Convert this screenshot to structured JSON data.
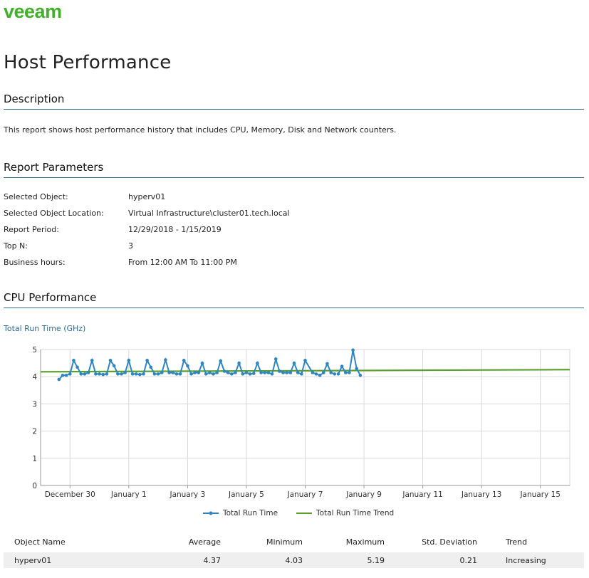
{
  "brand": {
    "logo_text": "veeam",
    "color": "#43b02a"
  },
  "page_title": "Host Performance",
  "sections": {
    "description": "Description",
    "report_parameters": "Report Parameters",
    "cpu_performance": "CPU Performance"
  },
  "description_text": "This report shows host performance history that includes CPU, Memory, Disk and Network counters.",
  "parameters": [
    {
      "label": "Selected Object:",
      "value": "hyperv01"
    },
    {
      "label": "Selected Object Location:",
      "value": "Virtual Infrastructure\\cluster01.tech.local"
    },
    {
      "label": "Report Period:",
      "value": "12/29/2018 - 1/15/2019"
    },
    {
      "label": "Top N:",
      "value": "3"
    },
    {
      "label": "Business hours:",
      "value": "From 12:00 AM To 11:00 PM"
    }
  ],
  "chart_data": {
    "type": "line",
    "title": "Total Run Time (GHz)",
    "xlabel": "",
    "ylabel": "",
    "ylim": [
      0,
      5
    ],
    "yticks": [
      0,
      1,
      2,
      3,
      4,
      5
    ],
    "x_start": "2018-12-29",
    "x_end": "2019-01-16",
    "xtick_labels": [
      "December 30",
      "January 1",
      "January 3",
      "January 5",
      "January 7",
      "January 9",
      "January 11",
      "January 13",
      "January 15"
    ],
    "grid": true,
    "legend_position": "bottom",
    "colors": {
      "series": "#2e86c1",
      "trend": "#5aa02c"
    },
    "series": [
      {
        "name": "Total Run Time",
        "x": [
          "2018-12-29T15:00",
          "2018-12-29T18:00",
          "2018-12-29T21:00",
          "2018-12-30T00:00",
          "2018-12-30T03:00",
          "2018-12-30T06:00",
          "2018-12-30T09:00",
          "2018-12-30T12:00",
          "2018-12-30T15:00",
          "2018-12-30T18:00",
          "2018-12-30T21:00",
          "2018-12-31T00:00",
          "2018-12-31T03:00",
          "2018-12-31T06:00",
          "2018-12-31T09:00",
          "2018-12-31T12:00",
          "2018-12-31T15:00",
          "2018-12-31T18:00",
          "2018-12-31T21:00",
          "2019-01-01T00:00",
          "2019-01-01T03:00",
          "2019-01-01T06:00",
          "2019-01-01T09:00",
          "2019-01-01T12:00",
          "2019-01-01T15:00",
          "2019-01-01T18:00",
          "2019-01-01T21:00",
          "2019-01-02T00:00",
          "2019-01-02T03:00",
          "2019-01-02T06:00",
          "2019-01-02T09:00",
          "2019-01-02T12:00",
          "2019-01-02T15:00",
          "2019-01-02T18:00",
          "2019-01-02T21:00",
          "2019-01-03T00:00",
          "2019-01-03T03:00",
          "2019-01-03T06:00",
          "2019-01-03T09:00",
          "2019-01-03T12:00",
          "2019-01-03T15:00",
          "2019-01-03T18:00",
          "2019-01-03T21:00",
          "2019-01-04T00:00",
          "2019-01-04T03:00",
          "2019-01-04T06:00",
          "2019-01-04T09:00",
          "2019-01-04T12:00",
          "2019-01-04T15:00",
          "2019-01-04T18:00",
          "2019-01-04T21:00",
          "2019-01-05T00:00",
          "2019-01-05T03:00",
          "2019-01-05T06:00",
          "2019-01-05T09:00",
          "2019-01-05T12:00",
          "2019-01-05T15:00",
          "2019-01-05T18:00",
          "2019-01-05T21:00",
          "2019-01-06T00:00",
          "2019-01-06T03:00",
          "2019-01-06T06:00",
          "2019-01-06T09:00",
          "2019-01-06T12:00",
          "2019-01-06T15:00",
          "2019-01-06T18:00",
          "2019-01-06T21:00",
          "2019-01-07T00:00",
          "2019-01-07T06:00",
          "2019-01-07T09:00",
          "2019-01-07T12:00",
          "2019-01-07T15:00",
          "2019-01-07T18:00",
          "2019-01-07T21:00",
          "2019-01-08T00:00"
        ],
        "y": [
          3.9,
          4.05,
          4.05,
          4.1,
          4.6,
          4.35,
          4.1,
          4.1,
          4.15,
          4.6,
          4.1,
          4.1,
          4.08,
          4.1,
          4.6,
          4.4,
          4.1,
          4.1,
          4.15,
          4.6,
          4.1,
          4.1,
          4.08,
          4.1,
          4.6,
          4.35,
          4.1,
          4.1,
          4.15,
          4.62,
          4.15,
          4.15,
          4.1,
          4.1,
          4.6,
          4.4,
          4.1,
          4.15,
          4.15,
          4.5,
          4.1,
          4.15,
          4.1,
          4.15,
          4.58,
          4.2,
          4.15,
          4.1,
          4.15,
          4.5,
          4.1,
          4.15,
          4.1,
          4.12,
          4.5,
          4.15,
          4.15,
          4.15,
          4.1,
          4.65,
          4.2,
          4.15,
          4.15,
          4.15,
          4.5,
          4.15,
          4.1,
          4.6,
          4.15,
          4.1,
          4.05,
          4.15,
          4.48,
          4.15,
          4.1
        ]
      },
      {
        "name": "Total Run Time Trend",
        "x": [
          "2018-12-29",
          "2019-01-16"
        ],
        "y": [
          4.18,
          4.26
        ]
      }
    ]
  },
  "chart_extra_points": {
    "x": [
      "2019-01-08T03:00",
      "2019-01-08T06:00",
      "2019-01-08T09:00",
      "2019-01-08T12:00",
      "2019-01-08T15:00",
      "2019-01-08T18:00",
      "2019-01-08T21:00"
    ],
    "y": [
      4.1,
      4.38,
      4.15,
      4.15,
      4.98,
      4.3,
      4.05
    ]
  },
  "table": {
    "headers": [
      "Object Name",
      "Average",
      "Minimum",
      "Maximum",
      "Std. Deviation",
      "Trend"
    ],
    "rows": [
      [
        "hyperv01",
        "4.37",
        "4.03",
        "5.19",
        "0.21",
        "Increasing"
      ]
    ]
  }
}
